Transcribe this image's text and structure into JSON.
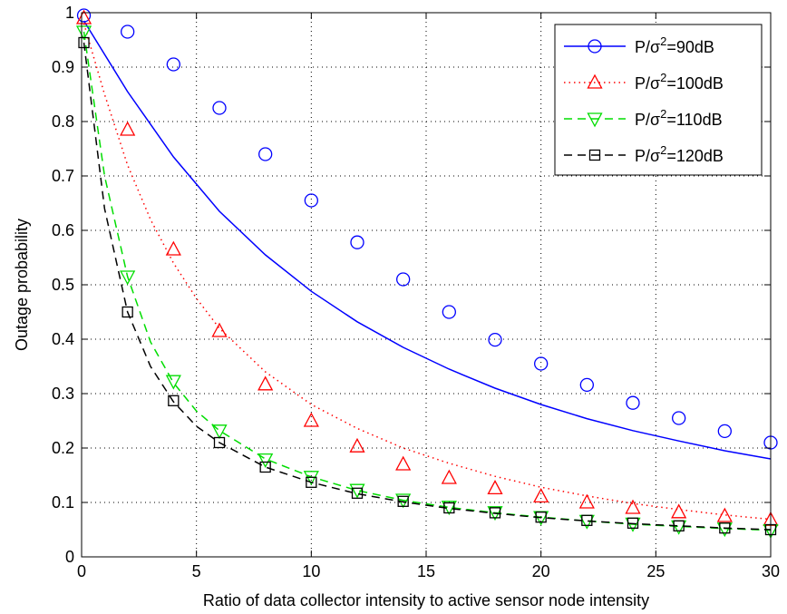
{
  "chart_data": {
    "type": "line",
    "xlabel": "Ratio of data collector intensity to active sensor node intensity",
    "ylabel": "Outage probability",
    "xlim": [
      0,
      30
    ],
    "ylim": [
      0,
      1
    ],
    "xticks": [
      "0",
      "5",
      "10",
      "15",
      "20",
      "25",
      "30"
    ],
    "yticks": [
      "0",
      "0.1",
      "0.2",
      "0.3",
      "0.4",
      "0.5",
      "0.6",
      "0.7",
      "0.8",
      "0.9",
      "1"
    ],
    "grid": true,
    "legend_position": "top-right",
    "series": [
      {
        "name": "P/σ²=90dB",
        "legend_prefix": "P/σ",
        "legend_sup": "2",
        "legend_suffix": "=90dB",
        "color": "#0000ff",
        "line_style": "solid",
        "marker": "circle",
        "line": {
          "x": [
            0.1,
            2,
            4,
            6,
            8,
            10,
            12,
            14,
            16,
            18,
            20,
            22,
            24,
            26,
            28,
            30
          ],
          "y": [
            0.985,
            0.855,
            0.735,
            0.635,
            0.555,
            0.488,
            0.432,
            0.385,
            0.345,
            0.31,
            0.28,
            0.254,
            0.232,
            0.213,
            0.195,
            0.18
          ]
        },
        "markers": {
          "x": [
            0.1,
            2,
            4,
            6,
            8,
            10,
            12,
            14,
            16,
            18,
            20,
            22,
            24,
            26,
            28,
            30
          ],
          "y": [
            0.995,
            0.965,
            0.905,
            0.825,
            0.74,
            0.655,
            0.578,
            0.51,
            0.45,
            0.399,
            0.355,
            0.316,
            0.283,
            0.255,
            0.231,
            0.21
          ]
        }
      },
      {
        "name": "P/σ²=100dB",
        "legend_prefix": "P/σ",
        "legend_sup": "2",
        "legend_suffix": "=100dB",
        "color": "#ff0000",
        "line_style": "dotted",
        "marker": "triangle-up",
        "line": {
          "x": [
            0.1,
            1,
            2,
            3,
            4,
            5,
            6,
            8,
            10,
            12,
            14,
            16,
            18,
            20,
            22,
            24,
            26,
            28,
            30
          ],
          "y": [
            0.98,
            0.85,
            0.72,
            0.62,
            0.54,
            0.475,
            0.42,
            0.34,
            0.28,
            0.236,
            0.2,
            0.172,
            0.148,
            0.128,
            0.112,
            0.098,
            0.087,
            0.077,
            0.069
          ]
        },
        "markers": {
          "x": [
            0.1,
            2,
            4,
            6,
            8,
            10,
            12,
            14,
            16,
            18,
            20,
            22,
            24,
            26,
            28,
            30
          ],
          "y": [
            0.99,
            0.785,
            0.565,
            0.415,
            0.317,
            0.25,
            0.203,
            0.17,
            0.145,
            0.126,
            0.111,
            0.1,
            0.09,
            0.082,
            0.075,
            0.068
          ]
        }
      },
      {
        "name": "P/σ²=110dB",
        "legend_prefix": "P/σ",
        "legend_sup": "2",
        "legend_suffix": "=110dB",
        "color": "#00dd00",
        "line_style": "dashed",
        "marker": "triangle-down",
        "line": {
          "x": [
            0.1,
            1,
            2,
            3,
            4,
            5,
            6,
            8,
            10,
            12,
            14,
            16,
            18,
            20,
            22,
            24,
            26,
            28,
            30
          ],
          "y": [
            0.965,
            0.7,
            0.515,
            0.395,
            0.32,
            0.268,
            0.232,
            0.18,
            0.147,
            0.122,
            0.104,
            0.091,
            0.081,
            0.073,
            0.066,
            0.06,
            0.056,
            0.052,
            0.049
          ]
        },
        "markers": {
          "x": [
            0.1,
            2,
            4,
            6,
            8,
            10,
            12,
            14,
            16,
            18,
            20,
            22,
            24,
            26,
            28,
            30
          ],
          "y": [
            0.965,
            0.515,
            0.323,
            0.232,
            0.179,
            0.147,
            0.123,
            0.105,
            0.092,
            0.082,
            0.073,
            0.066,
            0.061,
            0.056,
            0.052,
            0.049
          ]
        }
      },
      {
        "name": "P/σ²=120dB",
        "legend_prefix": "P/σ",
        "legend_sup": "2",
        "legend_suffix": "=120dB",
        "color": "#000000",
        "line_style": "dashed",
        "marker": "square",
        "line": {
          "x": [
            0.1,
            1,
            2,
            3,
            4,
            5,
            6,
            8,
            10,
            12,
            14,
            16,
            18,
            20,
            22,
            24,
            26,
            28,
            30
          ],
          "y": [
            0.945,
            0.64,
            0.45,
            0.35,
            0.285,
            0.24,
            0.21,
            0.165,
            0.137,
            0.116,
            0.101,
            0.089,
            0.08,
            0.072,
            0.066,
            0.061,
            0.057,
            0.053,
            0.05
          ]
        },
        "markers": {
          "x": [
            0.1,
            2,
            4,
            6,
            8,
            10,
            12,
            14,
            16,
            18,
            20,
            22,
            24,
            26,
            28,
            30
          ],
          "y": [
            0.945,
            0.45,
            0.287,
            0.21,
            0.165,
            0.137,
            0.117,
            0.102,
            0.09,
            0.081,
            0.073,
            0.067,
            0.062,
            0.057,
            0.053,
            0.05
          ]
        }
      }
    ]
  }
}
